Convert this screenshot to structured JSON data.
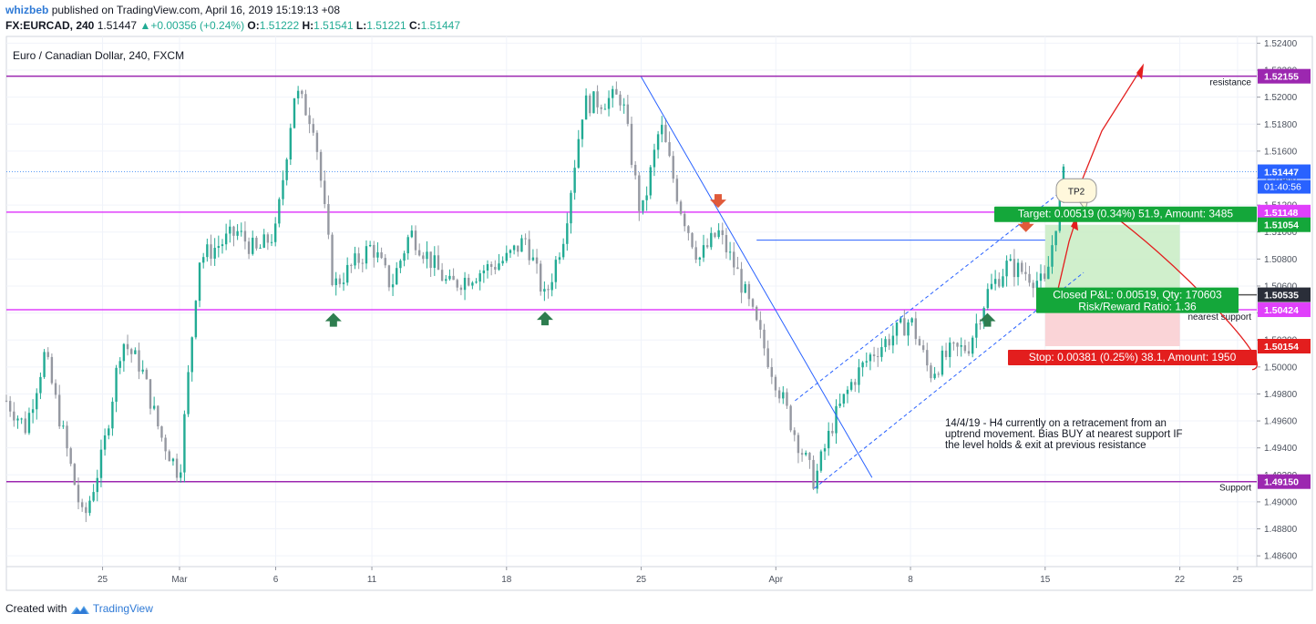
{
  "header": {
    "author": "whizbeb",
    "published": "published on TradingView.com, April 16, 2019 15:19:13 +08",
    "symbol": "FX:EURCAD, 240",
    "last": "1.51447",
    "change": "+0.00356 (+0.24%)",
    "ohlc": {
      "o_label": "O:",
      "o": "1.51222",
      "h_label": "H:",
      "h": "1.51541",
      "l_label": "L:",
      "l": "1.51221",
      "c_label": "C:",
      "c": "1.51447"
    }
  },
  "footer": {
    "created_with": "Created with",
    "brand": "TradingView"
  },
  "colors": {
    "up": "#22ab94",
    "down": "#9598a1",
    "magenta": "#e040fb",
    "purple": "#9c27b0",
    "blue": "#2962ff",
    "red": "#e31e1e",
    "green": "#14a73a",
    "target_bg": "#c8ecc3",
    "stop_bg": "#f9cdd0",
    "label_bg": "#2a2e39"
  },
  "chart_data": {
    "type": "candlestick",
    "title": "Euro / Canadian Dollar, 240, FXCM",
    "ylim": [
      1.4852,
      1.5245
    ],
    "y_ticks": [
      "1.52400",
      "1.52200",
      "1.52000",
      "1.51800",
      "1.51600",
      "1.51400",
      "1.51200",
      "1.51000",
      "1.50800",
      "1.50600",
      "1.50400",
      "1.50200",
      "1.50000",
      "1.49800",
      "1.49600",
      "1.49400",
      "1.49200",
      "1.49000",
      "1.48800",
      "1.48600"
    ],
    "x_ticks": [
      {
        "label": "25",
        "date": "2019-02-25"
      },
      {
        "label": "Mar",
        "date": "2019-03-01"
      },
      {
        "label": "6",
        "date": "2019-03-06"
      },
      {
        "label": "11",
        "date": "2019-03-11"
      },
      {
        "label": "18",
        "date": "2019-03-18"
      },
      {
        "label": "25",
        "date": "2019-03-25"
      },
      {
        "label": "Apr",
        "date": "2019-04-01"
      },
      {
        "label": "8",
        "date": "2019-04-08"
      },
      {
        "label": "15",
        "date": "2019-04-15"
      },
      {
        "label": "22",
        "date": "2019-04-22"
      },
      {
        "label": "25",
        "date": "2019-04-25"
      }
    ],
    "x_range": [
      "2019-02-20",
      "2019-04-26"
    ],
    "price_path": [
      [
        "2019-02-20",
        1.4975
      ],
      [
        "2019-02-21",
        1.4955
      ],
      [
        "2019-02-22",
        1.501
      ],
      [
        "2019-02-24",
        1.4885
      ],
      [
        "2019-02-25",
        1.4935
      ],
      [
        "2019-02-26",
        1.502
      ],
      [
        "2019-02-27",
        1.5
      ],
      [
        "2019-02-28",
        1.495
      ],
      [
        "2019-03-01",
        1.492
      ],
      [
        "2019-03-02",
        1.508
      ],
      [
        "2019-03-04",
        1.51
      ],
      [
        "2019-03-05",
        1.5085
      ],
      [
        "2019-03-06",
        1.51
      ],
      [
        "2019-03-07",
        1.5205
      ],
      [
        "2019-03-08",
        1.518
      ],
      [
        "2019-03-09",
        1.506
      ],
      [
        "2019-03-10",
        1.5075
      ],
      [
        "2019-03-11",
        1.509
      ],
      [
        "2019-03-12",
        1.506
      ],
      [
        "2019-03-13",
        1.51
      ],
      [
        "2019-03-14",
        1.508
      ],
      [
        "2019-03-15",
        1.506
      ],
      [
        "2019-03-18",
        1.508
      ],
      [
        "2019-03-19",
        1.5095
      ],
      [
        "2019-03-20",
        1.505
      ],
      [
        "2019-03-21",
        1.51
      ],
      [
        "2019-03-22",
        1.5195
      ],
      [
        "2019-03-24",
        1.52
      ],
      [
        "2019-03-25",
        1.511
      ],
      [
        "2019-03-26",
        1.518
      ],
      [
        "2019-03-27",
        1.512
      ],
      [
        "2019-03-28",
        1.508
      ],
      [
        "2019-03-29",
        1.51
      ],
      [
        "2019-03-30",
        1.507
      ],
      [
        "2019-04-01",
        1.499
      ],
      [
        "2019-04-02",
        1.495
      ],
      [
        "2019-04-03",
        1.4915
      ],
      [
        "2019-04-04",
        1.496
      ],
      [
        "2019-04-05",
        1.499
      ],
      [
        "2019-04-06",
        1.501
      ],
      [
        "2019-04-08",
        1.5035
      ],
      [
        "2019-04-09",
        1.4995
      ],
      [
        "2019-04-10",
        1.501
      ],
      [
        "2019-04-11",
        1.5015
      ],
      [
        "2019-04-12",
        1.5055
      ],
      [
        "2019-04-13",
        1.5075
      ],
      [
        "2019-04-14",
        1.507
      ],
      [
        "2019-04-15",
        1.506
      ],
      [
        "2019-04-16",
        1.5145
      ]
    ],
    "last_price": "1.51447",
    "countdown": "01:40:56",
    "price_lines": [
      {
        "price": 1.52155,
        "label": "1.52155",
        "name": "resistance",
        "color": "#9c27b0"
      },
      {
        "price": 1.51148,
        "label": "1.51148",
        "name": "",
        "color": "#e040fb"
      },
      {
        "price": 1.50424,
        "label": "1.50424",
        "name": "nearest support",
        "color": "#e040fb"
      },
      {
        "price": 1.4915,
        "label": "1.49150",
        "name": "Support",
        "color": "#9c27b0"
      }
    ],
    "position": {
      "entry": 1.50535,
      "entry_label": "1.50535",
      "target": 1.51054,
      "target_label": "1.51054",
      "stop": 1.50154,
      "stop_label": "1.50154",
      "start_date": "2019-04-15",
      "end_date": "2019-04-22",
      "target_text": "Target: 0.00519 (0.34%) 51.9, Amount: 3485",
      "stop_text": "Stop: 0.00381 (0.25%) 38.1, Amount: 1950",
      "closed_text": "Closed P&L: 0.00519, Qty: 170603",
      "rr_text": "Risk/Reward Ratio: 1.36"
    },
    "callout": "TP2",
    "note": [
      "14/4/19 - H4 currently on a retracement from an",
      "uptrend movement. Bias BUY at nearest support IF",
      "the level holds & exit at previous resistance"
    ]
  }
}
